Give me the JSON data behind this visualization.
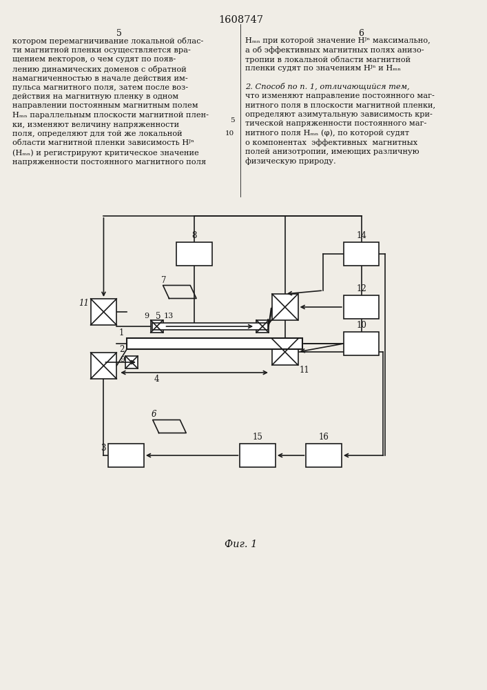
{
  "bg_color": "#f0ede6",
  "line_color": "#1a1a1a",
  "text_color": "#111111",
  "title": "1608747",
  "fig_caption": "Фиг. 1",
  "left_col_lines": [
    "котором перемагничивание локальной облас-",
    "ти магнитной пленки осуществляется вра-",
    "щением векторов, о чем судят по появ-",
    "лению динамических доменов с обратной",
    "намагниченностью в начале действия им-",
    "пульса магнитного поля, затем после воз-",
    "действия на магнитную пленку в одном",
    "направлении постоянным магнитным полем",
    "Hₘₙ параллельным плоскости магнитной плен-",
    "ки, изменяют величину напряженности",
    "поля, определяют для той же локальной",
    "области магнитной пленки зависимость Hᴶⁿ",
    "(Hₘₙ) и регистрируют критическое значение",
    "напряженности постоянного магнитного поля"
  ],
  "right_col_lines_1": [
    "Hₘₙ при которой значение Hᴶⁿ максимально,",
    "а об эффективных магнитных полях анизо-",
    "тропии в локальной области магнитной",
    "пленки судят по значениям Hᴶⁿ и Hₘₙ"
  ],
  "right_col_lines_2": [
    "2. Способ по п. 1, отличающийся тем,",
    "что изменяют направление постоянного маг-",
    "нитного поля в плоскости магнитной пленки,",
    "определяют азимутальную зависимость кри-",
    "тической напряженности постоянного маг-",
    "нитного поля Hₘₙ (φ), по которой судят",
    "о компонентах  эффективных  магнитных",
    "полей анизотропии, имеющих различную",
    "физическую природу."
  ]
}
